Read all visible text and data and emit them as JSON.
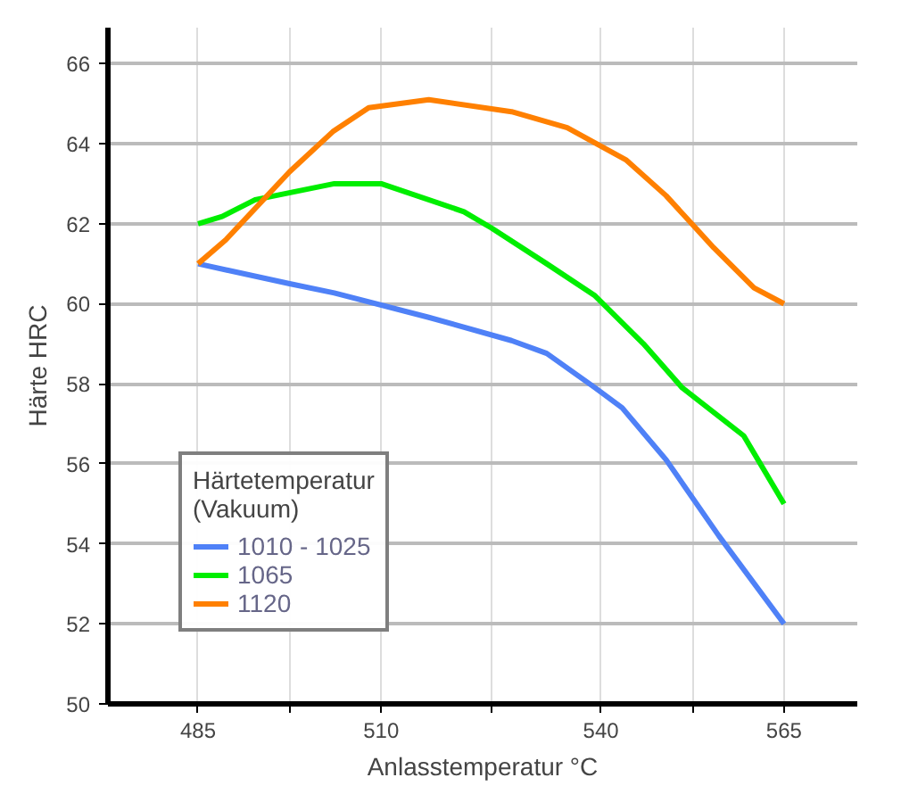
{
  "chart_data": {
    "type": "line",
    "xlabel": "Anlasstemperatur °C",
    "ylabel": "Härte HRC",
    "legend_title": "Härtetemperatur\n(Vakuum)",
    "xlim": [
      472.7,
      575
    ],
    "ylim": [
      50,
      66.9
    ],
    "xticks": [
      485,
      {
        "value": 497.5,
        "label": null
      },
      510,
      {
        "value": 525,
        "label": null
      },
      540,
      {
        "value": 552.5,
        "label": null
      },
      565
    ],
    "yticks": [
      50,
      52,
      54,
      56,
      58,
      60,
      62,
      64,
      66
    ],
    "grid": true,
    "legend": "bottom left",
    "line_style": "solid",
    "marker": "none",
    "series": [
      {
        "name": "1010 - 1025",
        "color": "#4f81f7",
        "x": [
          485,
          497.5,
          503.6,
          516.5,
          527.8,
          532.6,
          539.2,
          542.9,
          548.9,
          556.1,
          565
        ],
        "values": [
          61,
          60.5,
          60.27,
          59.66,
          59.08,
          58.76,
          57.9,
          57.4,
          56.1,
          54.2,
          52
        ]
      },
      {
        "name": "1065",
        "color": "#00ee00",
        "x": [
          485,
          488.3,
          492.8,
          498.2,
          503.6,
          510,
          521.3,
          525,
          532.6,
          539.2,
          545.8,
          551.1,
          559.5,
          565
        ],
        "values": [
          62,
          62.18,
          62.6,
          62.8,
          63,
          63,
          62.3,
          61.9,
          61,
          60.2,
          59,
          57.9,
          56.7,
          55
        ]
      },
      {
        "name": "1120",
        "color": "#ff8000",
        "x": [
          485,
          488.8,
          497.5,
          503.4,
          508.3,
          516.5,
          527.8,
          535.4,
          543.4,
          548.9,
          555.4,
          560.9,
          565
        ],
        "values": [
          61,
          61.6,
          63.3,
          64.3,
          64.9,
          65.1,
          64.8,
          64.4,
          63.6,
          62.7,
          61.4,
          60.4,
          60
        ]
      }
    ]
  }
}
